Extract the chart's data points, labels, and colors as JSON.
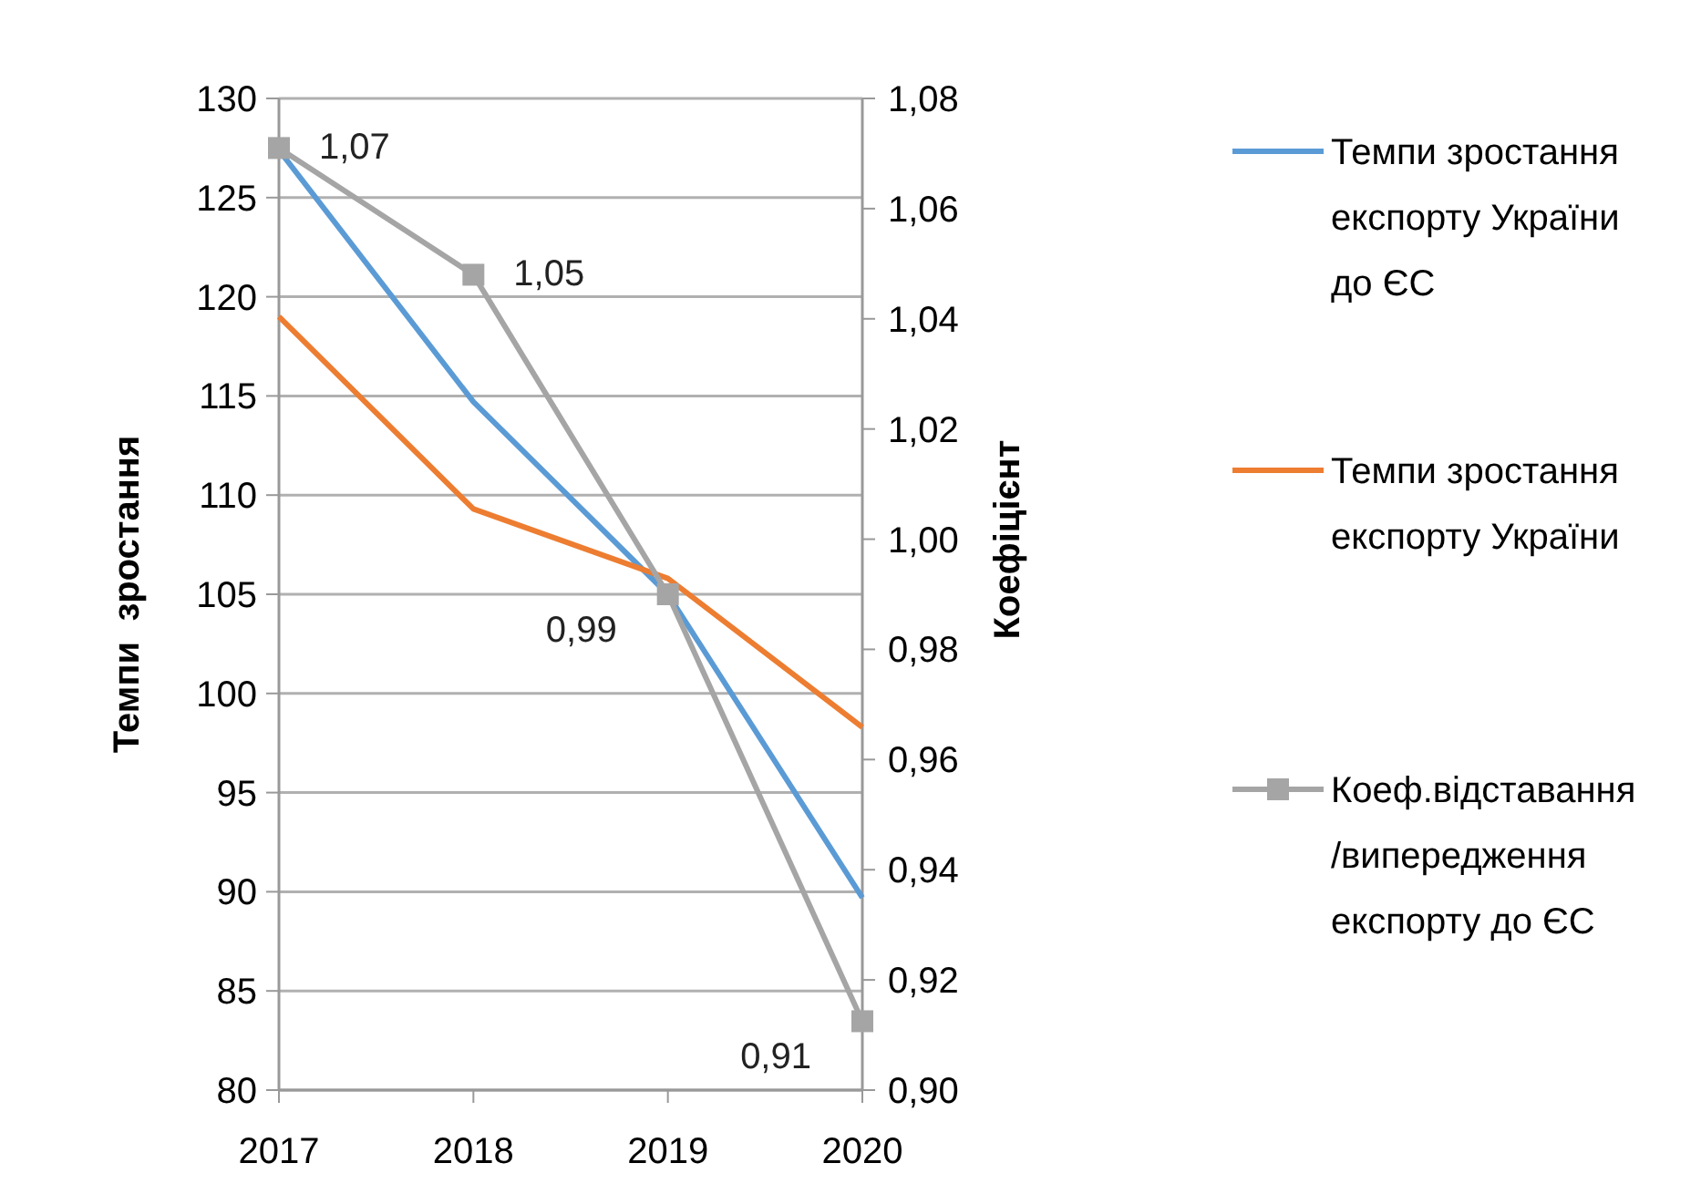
{
  "chart_data": {
    "type": "line",
    "categories": [
      "2017",
      "2018",
      "2019",
      "2020"
    ],
    "ylabel": "Темпи  зростання",
    "y2label": "Коефіцієнт",
    "ylim": [
      80,
      130
    ],
    "yticks": [
      80,
      85,
      90,
      95,
      100,
      105,
      110,
      115,
      120,
      125,
      130
    ],
    "y2lim": [
      0.9,
      1.08
    ],
    "y2ticks": [
      {
        "value": 0.9,
        "label": "0,90"
      },
      {
        "value": 0.92,
        "label": "0,92"
      },
      {
        "value": 0.94,
        "label": "0,94"
      },
      {
        "value": 0.96,
        "label": "0,96"
      },
      {
        "value": 0.98,
        "label": "0,98"
      },
      {
        "value": 1.0,
        "label": "1,00"
      },
      {
        "value": 1.02,
        "label": "1,02"
      },
      {
        "value": 1.04,
        "label": "1,04"
      },
      {
        "value": 1.06,
        "label": "1,06"
      },
      {
        "value": 1.08,
        "label": "1,08"
      }
    ],
    "grid": "y",
    "legend": "right",
    "series": [
      {
        "name": "Темпи зростання експорту України до ЄС",
        "color": "#5b9bd5",
        "values": [
          127.4,
          114.7,
          105.0,
          89.7
        ]
      },
      {
        "name": "Темпи зростання експорту України",
        "color": "#ed7d31",
        "values": [
          119.0,
          109.3,
          105.8,
          98.3
        ]
      },
      {
        "name": "Коеф.відставання /випередження експорту до ЄС",
        "color": "#a5a5a5",
        "axis": "y2",
        "marker": "square",
        "values": [
          1.071,
          1.048,
          0.99,
          0.9125
        ],
        "value_labels": [
          "1,07",
          "1,05",
          "0,99",
          "0,91"
        ]
      }
    ]
  }
}
